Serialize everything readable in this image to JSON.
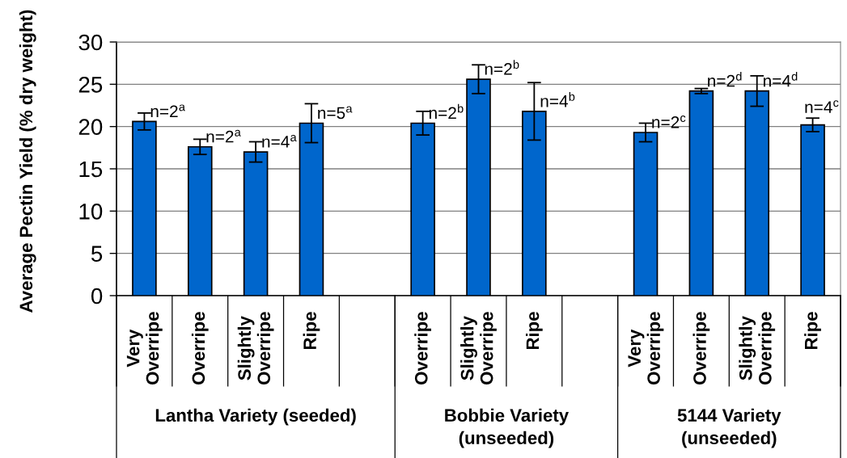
{
  "chart_data": {
    "type": "bar",
    "ylabel": "Average Pectin Yield (% dry weight)",
    "categories": [
      "Very\nOverripe",
      "Overripe",
      "Slightly\nOverripe",
      "Ripe",
      null,
      "Overripe",
      "Slightly\nOverripe",
      "Ripe",
      null,
      "Very\nOverripe",
      "Overripe",
      "Slightly\nOverripe",
      "Ripe"
    ],
    "values": [
      20.6,
      17.6,
      17.0,
      20.4,
      null,
      20.4,
      25.6,
      21.8,
      null,
      19.3,
      24.2,
      24.2,
      20.2
    ],
    "errors": [
      1.0,
      0.9,
      1.2,
      2.3,
      null,
      1.4,
      1.7,
      3.4,
      null,
      1.1,
      0.3,
      1.8,
      0.8
    ],
    "color": "#0066cc",
    "ylim": [
      0,
      30
    ],
    "yticks": [
      0,
      5,
      10,
      15,
      20,
      25,
      30
    ],
    "grid": "y",
    "annotations": [
      "Lantha Variety (seeded)",
      "Bobbie Variety\n(unseeded)",
      "5144 Variety\n(unseeded)",
      "n=2$^{a}$",
      "n=2$^{a}$",
      "n=4$^{a}$",
      "n=5$^{a}$",
      "n=2$^{b}$",
      "n=2$^{b}$",
      "n=4$^{b}$",
      "n=2$^{c}$",
      "n=2$^{d}$",
      "n=4$^{d}$",
      "n=4$^{c}$"
    ]
  }
}
